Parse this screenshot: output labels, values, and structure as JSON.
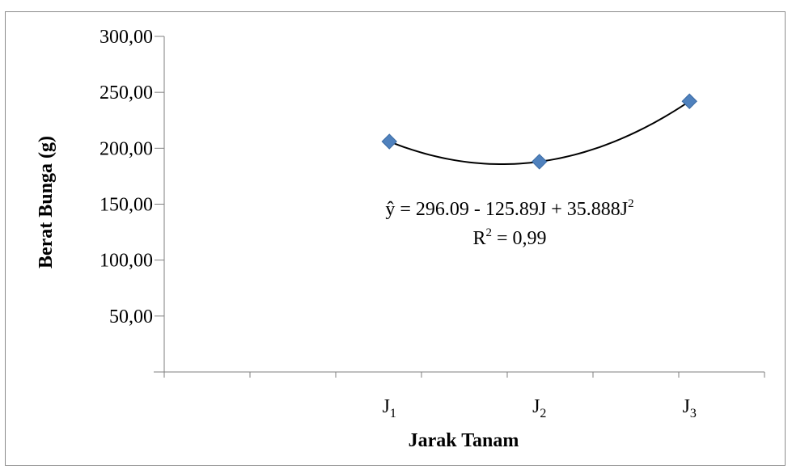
{
  "chart_data": {
    "type": "scatter",
    "title": "",
    "xlabel": "Jarak Tanam",
    "ylabel": "Berat  Bunga (g)",
    "categories": [
      {
        "base": "J",
        "sub": "1"
      },
      {
        "base": "J",
        "sub": "2"
      },
      {
        "base": "J",
        "sub": "3"
      }
    ],
    "x": [
      1,
      2,
      3
    ],
    "values": [
      206,
      188,
      242
    ],
    "ylim": [
      0,
      300
    ],
    "yticks": [
      "300,00",
      "250,00",
      "200,00",
      "150,00",
      "100,00",
      "50,00"
    ],
    "ytick_values": [
      300,
      250,
      200,
      150,
      100,
      50
    ],
    "grid": false,
    "legend": "none",
    "marker_color": "#4f81bd",
    "trendline": {
      "type": "polynomial",
      "order": 2,
      "equation": {
        "lhs": "ŷ  = 296.09 - 125.89J + 35.888J",
        "sup": "2"
      },
      "r_squared": {
        "lhs": "R",
        "sup": "2",
        "rhs": " = 0,99"
      },
      "color": "#000000"
    }
  }
}
